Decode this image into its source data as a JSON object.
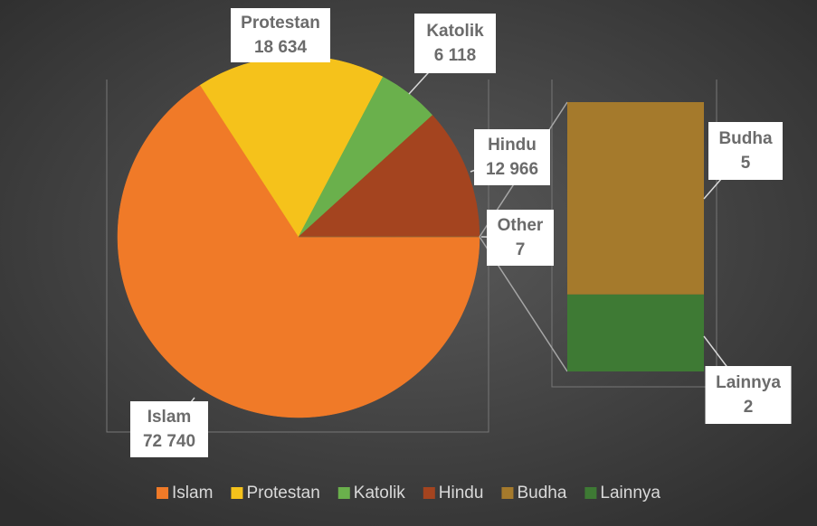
{
  "chart_data": {
    "type": "pie",
    "categories": [
      "Islam",
      "Protestan",
      "Katolik",
      "Hindu",
      "Other"
    ],
    "values": [
      72740,
      18634,
      6118,
      12966,
      7
    ],
    "value_labels": [
      "72 740",
      "18 634",
      "6 118",
      "12 966",
      "7"
    ],
    "colors": [
      "#f07a28",
      "#f5c21b",
      "#6ab04c",
      "#a4441f",
      "#8a6a3a"
    ],
    "secondary": {
      "type": "bar",
      "categories": [
        "Budha",
        "Lainnya"
      ],
      "values": [
        5,
        2
      ],
      "value_labels": [
        "5",
        "2"
      ],
      "colors": [
        "#a57a2c",
        "#3e7a34"
      ]
    },
    "legend": "bottom"
  }
}
